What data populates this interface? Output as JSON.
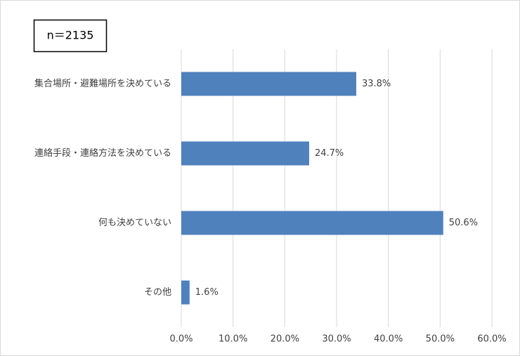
{
  "chart_data": {
    "type": "bar",
    "orientation": "horizontal",
    "annotation": "n＝2135",
    "categories": [
      "集合場所・避難場所を決めている",
      "連絡手段・連絡方法を決めている",
      "何も決めていない",
      "その他"
    ],
    "values": [
      33.8,
      24.7,
      50.6,
      1.6
    ],
    "value_labels": [
      "33.8%",
      "24.7%",
      "50.6%",
      "1.6%"
    ],
    "color": "#4f81bd",
    "xlim": [
      0,
      60
    ],
    "xticks": [
      {
        "value": 0,
        "label": "0.0%"
      },
      {
        "value": 10,
        "label": "10.0%"
      },
      {
        "value": 20,
        "label": "20.0%"
      },
      {
        "value": 30,
        "label": "30.0%"
      },
      {
        "value": 40,
        "label": "40.0%"
      },
      {
        "value": 50,
        "label": "50.0%"
      },
      {
        "value": 60,
        "label": "60.0%"
      }
    ],
    "grid": true
  }
}
